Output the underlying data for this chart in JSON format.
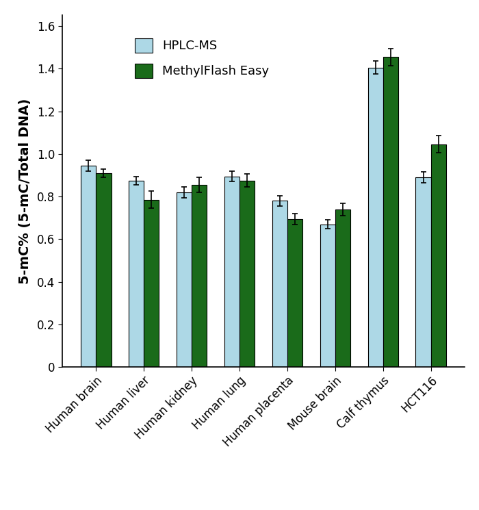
{
  "categories": [
    "Human brain",
    "Human liver",
    "Human kidney",
    "Human lung",
    "Human placenta",
    "Mouse brain",
    "Calf thymus",
    "HCT116"
  ],
  "hplc_ms_values": [
    0.945,
    0.875,
    0.82,
    0.895,
    0.78,
    0.67,
    1.405,
    0.89
  ],
  "hplc_ms_errors": [
    0.025,
    0.02,
    0.025,
    0.025,
    0.025,
    0.02,
    0.03,
    0.025
  ],
  "methylflash_values": [
    0.91,
    0.785,
    0.855,
    0.875,
    0.695,
    0.74,
    1.455,
    1.045
  ],
  "methylflash_errors": [
    0.02,
    0.04,
    0.035,
    0.03,
    0.025,
    0.03,
    0.04,
    0.04
  ],
  "hplc_color": "#add8e6",
  "methylflash_color": "#1a6b1a",
  "hplc_edge_color": "#000000",
  "methylflash_edge_color": "#000000",
  "bar_width": 0.32,
  "ylabel": "5-mC% (5-mC/Total DNA)",
  "ylim": [
    0,
    1.65
  ],
  "yticks": [
    0,
    0.2,
    0.4,
    0.6,
    0.8,
    1.0,
    1.2,
    1.4,
    1.6
  ],
  "legend_hplc": "HPLC-MS",
  "legend_methylflash": "MethylFlash Easy",
  "ylabel_fontsize": 14,
  "tick_fontsize": 12,
  "legend_fontsize": 13,
  "xtick_fontsize": 12
}
